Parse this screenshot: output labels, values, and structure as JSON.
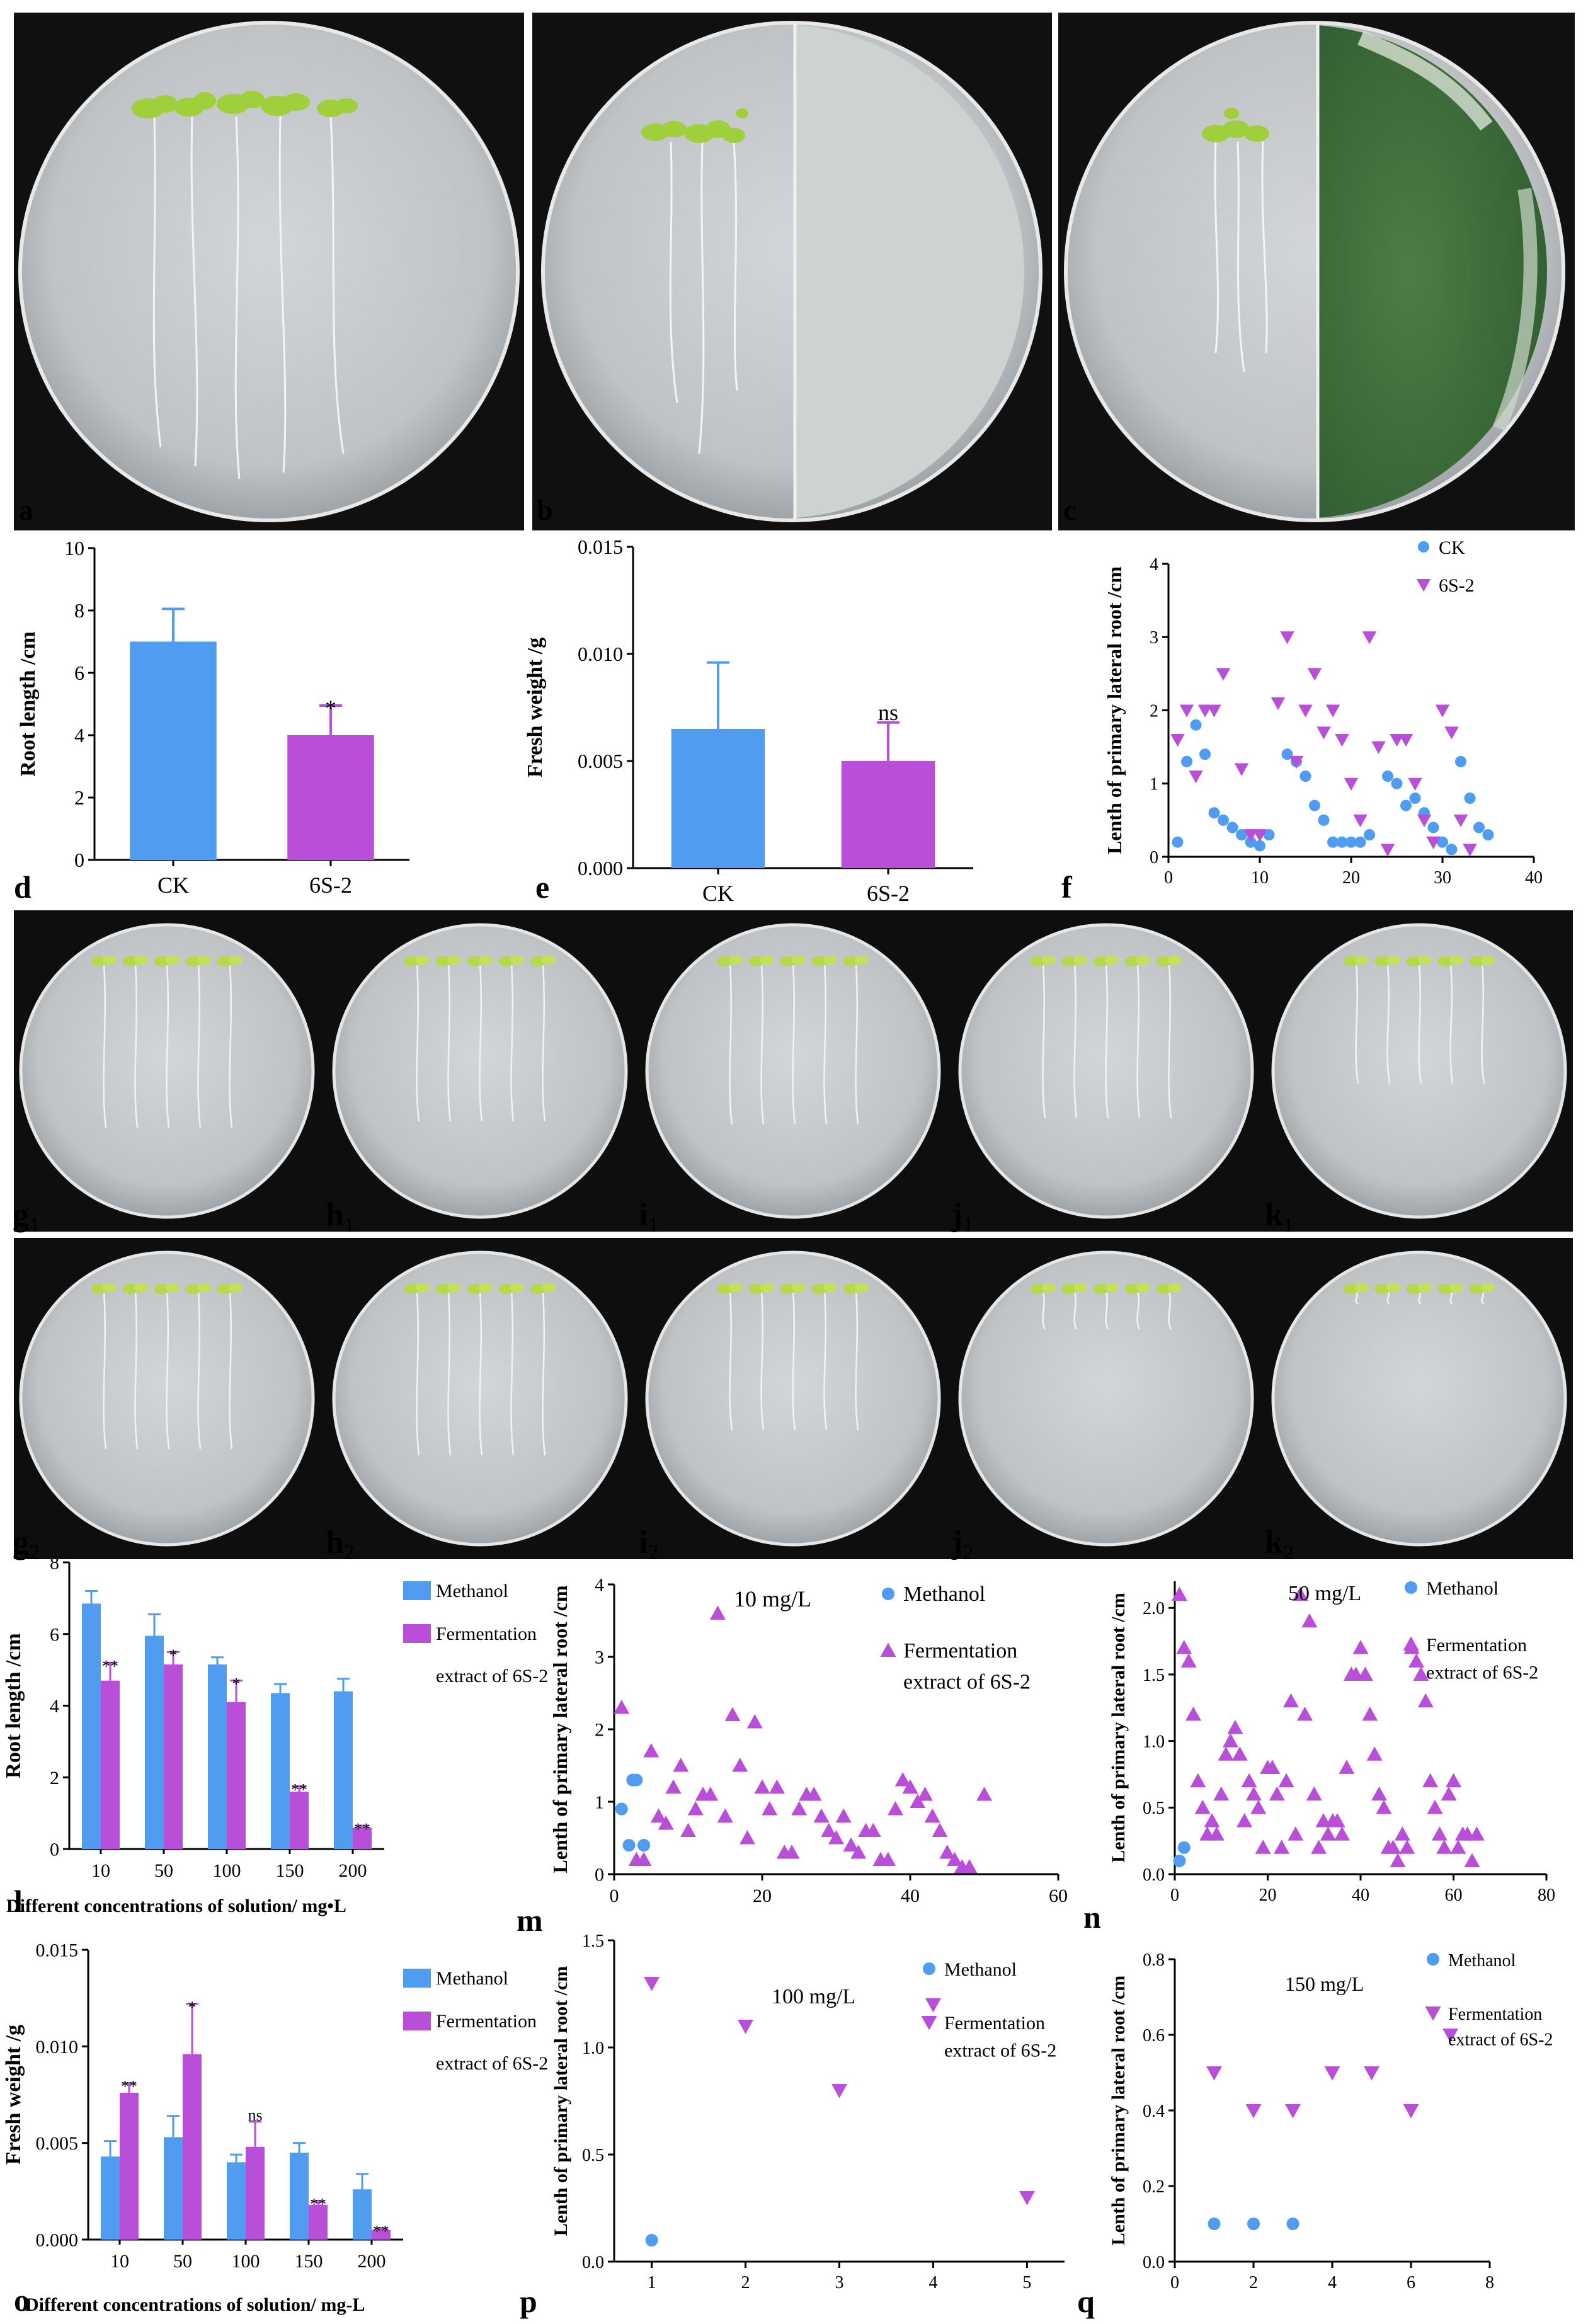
{
  "colors": {
    "ck": "#4f9cf0",
    "treated": "#b94fd8",
    "sig_ck": "#ffffff",
    "dish_bg": "#0e0e0e",
    "agar": "#c9cccf",
    "fungus": "#3c6b3a"
  },
  "photos": {
    "top_labels": [
      "a",
      "b",
      "c"
    ],
    "row1_labels": [
      {
        "letter": "g",
        "sub": "1"
      },
      {
        "letter": "h",
        "sub": "1"
      },
      {
        "letter": "i",
        "sub": "1"
      },
      {
        "letter": "j",
        "sub": "1"
      },
      {
        "letter": "k",
        "sub": "1"
      }
    ],
    "row2_labels": [
      {
        "letter": "g",
        "sub": "2"
      },
      {
        "letter": "h",
        "sub": "2"
      },
      {
        "letter": "i",
        "sub": "2"
      },
      {
        "letter": "j",
        "sub": "2"
      },
      {
        "letter": "k",
        "sub": "2"
      }
    ]
  },
  "chart_data": [
    {
      "id": "d",
      "type": "bar",
      "panel_label": "d",
      "categories": [
        "CK",
        "6S-2"
      ],
      "values": [
        7.0,
        4.0
      ],
      "errors": [
        1.05,
        0.95
      ],
      "significance": [
        "",
        "*"
      ],
      "ylabel": "Root length /cm",
      "xlabel": "",
      "ylim": [
        0,
        10
      ],
      "yticks": [
        "0",
        "2",
        "4",
        "6",
        "8",
        "10"
      ],
      "ytick_values": [
        0,
        2,
        4,
        6,
        8,
        10
      ]
    },
    {
      "id": "e",
      "type": "bar",
      "panel_label": "e",
      "categories": [
        "CK",
        "6S-2"
      ],
      "values": [
        0.0065,
        0.005
      ],
      "errors": [
        0.0031,
        0.0018
      ],
      "significance": [
        "",
        "ns"
      ],
      "ylabel": "Fresh weight /g",
      "xlabel": "",
      "ylim": [
        0,
        0.015
      ],
      "yticks": [
        "0.000",
        "0.005",
        "0.010",
        "0.015"
      ],
      "ytick_values": [
        0,
        0.005,
        0.01,
        0.015
      ]
    },
    {
      "id": "f",
      "type": "scatter",
      "panel_label": "f",
      "ylabel": "Lenth of primary lateral root /cm",
      "xlabel": "",
      "xlim": [
        0,
        40
      ],
      "ylim": [
        0,
        4
      ],
      "xticks": [
        "0",
        "10",
        "20",
        "30",
        "40"
      ],
      "xtick_values": [
        0,
        10,
        20,
        30,
        40
      ],
      "yticks": [
        "0",
        "1",
        "2",
        "3",
        "4"
      ],
      "ytick_values": [
        0,
        1,
        2,
        3,
        4
      ],
      "series": [
        {
          "name": "CK",
          "marker": "circle",
          "x": [
            1,
            2,
            3,
            4,
            5,
            6,
            7,
            8,
            9,
            10,
            11,
            13,
            14,
            15,
            16,
            17,
            18,
            19,
            20,
            21,
            22,
            24,
            25,
            26,
            27,
            28,
            29,
            30,
            31,
            32,
            33,
            34,
            35
          ],
          "y": [
            0.2,
            1.3,
            1.8,
            1.4,
            0.6,
            0.5,
            0.4,
            0.3,
            0.2,
            0.15,
            0.3,
            1.4,
            1.3,
            1.1,
            0.7,
            0.5,
            0.2,
            0.2,
            0.2,
            0.2,
            0.3,
            1.1,
            1.0,
            0.7,
            0.8,
            0.6,
            0.4,
            0.2,
            0.1,
            1.3,
            0.8,
            0.4,
            0.3
          ]
        },
        {
          "name": "6S-2",
          "marker": "triangle-down",
          "x": [
            1,
            2,
            3,
            4,
            5,
            6,
            8,
            9,
            10,
            12,
            13,
            14,
            15,
            16,
            17,
            18,
            19,
            20,
            21,
            22,
            23,
            24,
            25,
            26,
            27,
            28,
            29,
            30,
            31,
            32,
            33
          ],
          "y": [
            1.6,
            2.0,
            1.1,
            2.0,
            2.0,
            2.5,
            1.2,
            0.3,
            0.3,
            2.1,
            3.0,
            1.3,
            2.0,
            2.5,
            1.7,
            2.0,
            1.6,
            1.0,
            0.5,
            3.0,
            1.5,
            0.1,
            1.6,
            1.6,
            1.0,
            0.5,
            0.2,
            2.0,
            1.7,
            0.5,
            0.1
          ]
        }
      ],
      "legend": [
        "CK",
        "6S-2"
      ]
    },
    {
      "id": "l",
      "type": "bar",
      "panel_label": "l",
      "categories": [
        "10",
        "50",
        "100",
        "150",
        "200"
      ],
      "series": [
        {
          "name": "Methanol",
          "values": [
            6.85,
            5.95,
            5.15,
            4.35,
            4.4
          ],
          "errors": [
            0.35,
            0.6,
            0.2,
            0.25,
            0.35
          ],
          "significance": [
            "",
            "",
            "",
            "",
            ""
          ]
        },
        {
          "name": "Fermentation extract of 6S-2",
          "values": [
            4.7,
            5.15,
            4.1,
            1.6,
            0.6
          ],
          "errors": [
            0.5,
            0.35,
            0.6,
            0.15,
            0.05
          ],
          "significance": [
            "**",
            "*",
            "*",
            "**",
            "**"
          ]
        }
      ],
      "legend_line1": "Fermentation",
      "legend_line2": "extract of 6S-2",
      "ylabel": "Root length /cm",
      "xlabel": "Different concentrations of solution/ mg•L",
      "ylim": [
        0,
        8
      ],
      "yticks": [
        "0",
        "2",
        "4",
        "6",
        "8"
      ],
      "ytick_values": [
        0,
        2,
        4,
        6,
        8
      ]
    },
    {
      "id": "m",
      "type": "scatter",
      "panel_label": "m",
      "annotation": "10 mg/L",
      "ylabel": "Lenth of primary lateral root /cm",
      "xlabel": "",
      "xlim": [
        0,
        60
      ],
      "ylim": [
        0,
        4
      ],
      "xticks": [
        "0",
        "20",
        "40",
        "60"
      ],
      "xtick_values": [
        0,
        20,
        40,
        60
      ],
      "yticks": [
        "0",
        "1",
        "2",
        "3",
        "4"
      ],
      "ytick_values": [
        0,
        1,
        2,
        3,
        4
      ],
      "series": [
        {
          "name": "Methanol",
          "marker": "circle",
          "x": [
            1,
            2,
            3,
            4,
            2.5
          ],
          "y": [
            0.9,
            0.4,
            1.3,
            0.4,
            1.3
          ]
        },
        {
          "name": "Fermentation extract of 6S-2",
          "marker": "triangle-up",
          "x": [
            1,
            3,
            4,
            5,
            6,
            7,
            8,
            9,
            10,
            11,
            12,
            13,
            14,
            15,
            16,
            17,
            18,
            19,
            20,
            21,
            22,
            23,
            24,
            25,
            26,
            27,
            28,
            29,
            30,
            31,
            32,
            33,
            34,
            35,
            36,
            37,
            38,
            39,
            40,
            41,
            42,
            43,
            44,
            45,
            46,
            47,
            48,
            50
          ],
          "y": [
            2.3,
            0.2,
            0.2,
            1.7,
            0.8,
            0.7,
            1.2,
            1.5,
            0.6,
            0.9,
            1.1,
            1.1,
            3.6,
            0.8,
            2.2,
            1.5,
            0.5,
            2.1,
            1.2,
            0.9,
            1.2,
            0.3,
            0.3,
            0.9,
            1.1,
            1.1,
            0.8,
            0.6,
            0.5,
            0.8,
            0.4,
            0.3,
            0.6,
            0.6,
            0.2,
            0.2,
            0.9,
            1.3,
            1.2,
            1.0,
            1.1,
            0.8,
            0.6,
            0.3,
            0.2,
            0.1,
            0.1,
            1.1
          ]
        }
      ],
      "legend_line1": "Fermentation",
      "legend_line2": "extract of 6S-2"
    },
    {
      "id": "n",
      "type": "scatter",
      "panel_label": "n",
      "annotation": "50 mg/L",
      "ylabel": "Lenth of primary lateral root /cm",
      "xlabel": "",
      "xlim": [
        0,
        80
      ],
      "ylim": [
        0,
        2.2
      ],
      "xticks": [
        "0",
        "20",
        "40",
        "60",
        "80"
      ],
      "xtick_values": [
        0,
        20,
        40,
        60,
        80
      ],
      "yticks": [
        "0.0",
        "0.5",
        "1.0",
        "1.5",
        "2.0"
      ],
      "ytick_values": [
        0,
        0.5,
        1.0,
        1.5,
        2.0
      ],
      "series": [
        {
          "name": "Methanol",
          "marker": "circle",
          "x": [
            1,
            2
          ],
          "y": [
            0.1,
            0.2
          ]
        },
        {
          "name": "Fermentation extract of 6S-2",
          "marker": "triangle-up",
          "x": [
            1,
            2,
            3,
            4,
            5,
            6,
            7,
            8,
            9,
            10,
            11,
            12,
            13,
            14,
            15,
            16,
            17,
            18,
            19,
            20,
            21,
            22,
            23,
            24,
            25,
            26,
            27,
            28,
            29,
            30,
            31,
            32,
            33,
            34,
            35,
            36,
            37,
            38,
            39,
            40,
            41,
            42,
            43,
            44,
            45,
            46,
            47,
            48,
            49,
            50,
            51,
            52,
            53,
            54,
            55,
            56,
            57,
            58,
            59,
            60,
            61,
            62,
            63,
            64,
            65
          ],
          "y": [
            2.1,
            1.7,
            1.6,
            1.2,
            0.7,
            0.5,
            0.3,
            0.4,
            0.3,
            0.6,
            0.9,
            1.0,
            1.1,
            0.9,
            0.4,
            0.7,
            0.6,
            0.5,
            0.2,
            0.8,
            0.8,
            0.6,
            0.2,
            0.7,
            1.3,
            0.3,
            2.1,
            1.2,
            1.9,
            0.6,
            0.2,
            0.4,
            0.3,
            0.4,
            0.4,
            0.3,
            0.8,
            1.5,
            1.5,
            1.7,
            1.5,
            1.2,
            0.9,
            0.6,
            0.5,
            0.2,
            0.2,
            0.1,
            0.3,
            0.2,
            1.7,
            1.6,
            1.5,
            1.3,
            0.7,
            0.5,
            0.3,
            0.2,
            0.6,
            0.7,
            0.2,
            0.3,
            0.3,
            0.1,
            0.3
          ]
        }
      ],
      "legend_line1": "Fermentation",
      "legend_line2": "extract of 6S-2"
    },
    {
      "id": "o",
      "type": "bar",
      "panel_label": "o",
      "categories": [
        "10",
        "50",
        "100",
        "150",
        "200"
      ],
      "series": [
        {
          "name": "Methanol",
          "values": [
            0.0043,
            0.0053,
            0.004,
            0.0045,
            0.0026
          ],
          "errors": [
            0.0008,
            0.0011,
            0.0004,
            0.0005,
            0.0008
          ],
          "significance": [
            "",
            "",
            "",
            "",
            ""
          ]
        },
        {
          "name": "Fermentation extract of 6S-2",
          "values": [
            0.0076,
            0.0096,
            0.0048,
            0.0018,
            0.0005
          ],
          "errors": [
            0.0005,
            0.0026,
            0.0013,
            0.0002,
            0.0001
          ],
          "significance": [
            "**",
            "*",
            "ns",
            "**",
            "**"
          ]
        }
      ],
      "legend_line1": "Fermentation",
      "legend_line2": "extract of 6S-2",
      "ylabel": "Fresh weight /g",
      "xlabel": "Different concentrations of solution/ mg-L",
      "ylim": [
        0,
        0.015
      ],
      "yticks": [
        "0.000",
        "0.005",
        "0.010",
        "0.015"
      ],
      "ytick_values": [
        0,
        0.005,
        0.01,
        0.015
      ]
    },
    {
      "id": "p",
      "type": "scatter",
      "panel_label": "p",
      "annotation": "100 mg/L",
      "ylabel": "Lenth of primary lateral root /cm",
      "xlabel": "",
      "xlim": [
        0.6,
        5.4
      ],
      "ylim": [
        0,
        1.5
      ],
      "xticks": [
        "1",
        "2",
        "3",
        "4",
        "5"
      ],
      "xtick_values": [
        1,
        2,
        3,
        4,
        5
      ],
      "yticks": [
        "0.0",
        "0.5",
        "1.0",
        "1.5"
      ],
      "ytick_values": [
        0,
        0.5,
        1.0,
        1.5
      ],
      "series": [
        {
          "name": "Methanol",
          "marker": "circle",
          "x": [
            1
          ],
          "y": [
            0.1
          ]
        },
        {
          "name": "Fermentation extract of 6S-2",
          "marker": "triangle-down",
          "x": [
            1,
            2,
            3,
            4,
            5
          ],
          "y": [
            1.3,
            1.1,
            0.8,
            1.2,
            0.3
          ]
        }
      ],
      "legend_line1": "Fermentation",
      "legend_line2": "extract of 6S-2"
    },
    {
      "id": "q",
      "type": "scatter",
      "panel_label": "q",
      "annotation": "150 mg/L",
      "ylabel": "Lenth of primary lateral root /cm",
      "xlabel": "",
      "xlim": [
        0,
        8
      ],
      "ylim": [
        0,
        0.8
      ],
      "xticks": [
        "0",
        "2",
        "4",
        "6",
        "8"
      ],
      "xtick_values": [
        0,
        2,
        4,
        6,
        8
      ],
      "yticks": [
        "0.0",
        "0.2",
        "0.4",
        "0.6",
        "0.8"
      ],
      "ytick_values": [
        0,
        0.2,
        0.4,
        0.6,
        0.8
      ],
      "series": [
        {
          "name": "Methanol",
          "marker": "circle",
          "x": [
            1,
            2,
            3
          ],
          "y": [
            0.1,
            0.1,
            0.1
          ]
        },
        {
          "name": "Fermentation extract of 6S-2",
          "marker": "triangle-down",
          "x": [
            1,
            2,
            3,
            4,
            5,
            6,
            7
          ],
          "y": [
            0.5,
            0.4,
            0.4,
            0.5,
            0.5,
            0.4,
            0.6
          ]
        }
      ],
      "legend_line1": "Fermentation",
      "legend_line2": "extract of 6S-2"
    }
  ]
}
